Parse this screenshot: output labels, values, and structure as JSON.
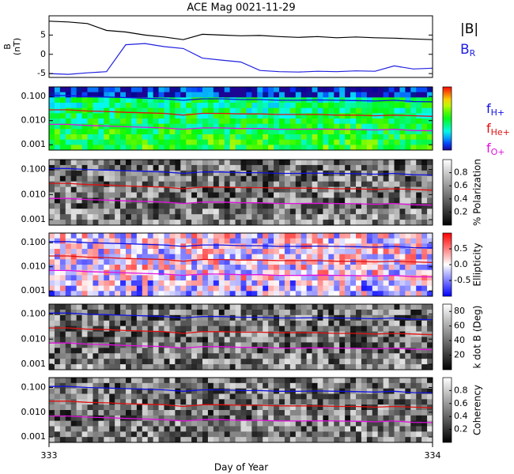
{
  "title": "ACE Mag 0021-11-29",
  "x_label": "Day of Year",
  "time": {
    "xlim": [
      333,
      334
    ],
    "xticks": [
      333,
      334
    ],
    "x": [
      333,
      333.05,
      333.1,
      333.15,
      333.2,
      333.25,
      333.3,
      333.35,
      333.4,
      333.45,
      333.5,
      333.55,
      333.6,
      333.65,
      333.7,
      333.75,
      333.8,
      333.85,
      333.9,
      333.95,
      334
    ]
  },
  "frequency_lines": {
    "series": [
      {
        "name": "f",
        "sub": "H+",
        "color": "#1010e0",
        "values": [
          0.11,
          0.11,
          0.1,
          0.095,
          0.09,
          0.085,
          0.08,
          0.07,
          0.08,
          0.08,
          0.075,
          0.075,
          0.07,
          0.07,
          0.072,
          0.07,
          0.068,
          0.065,
          0.07,
          0.062,
          0.06
        ]
      },
      {
        "name": "f",
        "sub": "He+",
        "color": "#e01010",
        "values": [
          0.028,
          0.028,
          0.025,
          0.024,
          0.022,
          0.021,
          0.02,
          0.017,
          0.02,
          0.02,
          0.019,
          0.019,
          0.018,
          0.018,
          0.018,
          0.017,
          0.017,
          0.016,
          0.017,
          0.016,
          0.015
        ]
      },
      {
        "name": "f",
        "sub": "O+",
        "color": "#e010e0",
        "values": [
          0.007,
          0.007,
          0.0063,
          0.006,
          0.0056,
          0.0053,
          0.005,
          0.0044,
          0.005,
          0.005,
          0.0047,
          0.0047,
          0.0044,
          0.0044,
          0.0045,
          0.0044,
          0.0043,
          0.0041,
          0.0044,
          0.0039,
          0.0038
        ]
      }
    ]
  },
  "chart_data": [
    {
      "type": "line",
      "ylabel": [
        "B",
        "(nT)"
      ],
      "ylim": [
        -6,
        10
      ],
      "yticks": [
        -5,
        0,
        5
      ],
      "series": [
        {
          "name": "|B|",
          "color": "#000000",
          "values": [
            8.6,
            8.4,
            8.0,
            6.2,
            5.8,
            5.0,
            4.5,
            3.8,
            5.2,
            5.0,
            4.8,
            4.9,
            4.6,
            4.4,
            4.6,
            4.3,
            4.5,
            4.3,
            4.2,
            4.0,
            3.8
          ]
        },
        {
          "name": "B",
          "sub": "R",
          "color": "#2020e0",
          "values": [
            -5.0,
            -5.2,
            -4.8,
            -4.5,
            2.5,
            2.8,
            2.0,
            1.5,
            -1.0,
            -1.5,
            -2.0,
            -4.2,
            -4.5,
            -4.6,
            -4.4,
            -4.5,
            -4.3,
            -4.4,
            -3.0,
            -3.8,
            -3.6
          ]
        }
      ]
    },
    {
      "type": "spectrogram",
      "colormap": "rainbow",
      "log_y": true,
      "ylim": [
        0.0006,
        0.25
      ],
      "yticks": [
        {
          "value": 0.001,
          "label": "0.001"
        },
        {
          "value": 0.01,
          "label": "0.010"
        },
        {
          "value": 0.1,
          "label": "0.100"
        }
      ]
    },
    {
      "type": "spectrogram",
      "colormap": "gray",
      "log_y": true,
      "ylim": [
        0.0006,
        0.25
      ],
      "yticks": [
        {
          "value": 0.001,
          "label": "0.001"
        },
        {
          "value": 0.01,
          "label": "0.010"
        },
        {
          "value": 0.1,
          "label": "0.100"
        }
      ],
      "colorbar": {
        "label": "% Polarization",
        "lim": [
          0,
          1
        ],
        "ticks": [
          0.2,
          0.4,
          0.6,
          0.8
        ]
      }
    },
    {
      "type": "spectrogram",
      "colormap": "bwr",
      "log_y": true,
      "ylim": [
        0.0006,
        0.25
      ],
      "yticks": [
        {
          "value": 0.001,
          "label": "0.001"
        },
        {
          "value": 0.01,
          "label": "0.010"
        },
        {
          "value": 0.1,
          "label": "0.100"
        }
      ],
      "colorbar": {
        "label": "Ellipticity",
        "lim": [
          -1,
          1
        ],
        "ticks": [
          -0.5,
          {
            "value": 0,
            "label": "0.0"
          },
          0.5
        ]
      }
    },
    {
      "type": "spectrogram",
      "colormap": "gray",
      "log_y": true,
      "ylim": [
        0.0006,
        0.25
      ],
      "yticks": [
        {
          "value": 0.001,
          "label": "0.001"
        },
        {
          "value": 0.01,
          "label": "0.010"
        },
        {
          "value": 0.1,
          "label": "0.100"
        }
      ],
      "colorbar": {
        "label": "k dot B (Deg)",
        "lim": [
          0,
          90
        ],
        "ticks": [
          20,
          40,
          60,
          80
        ]
      }
    },
    {
      "type": "spectrogram",
      "colormap": "gray",
      "log_y": true,
      "ylim": [
        0.0006,
        0.25
      ],
      "yticks": [
        {
          "value": 0.001,
          "label": "0.001"
        },
        {
          "value": 0.01,
          "label": "0.010"
        },
        {
          "value": 0.1,
          "label": "0.100"
        }
      ],
      "colorbar": {
        "label": "Coherency",
        "lim": [
          0,
          1
        ],
        "ticks": [
          0.2,
          0.4,
          0.6,
          0.8
        ]
      }
    }
  ]
}
